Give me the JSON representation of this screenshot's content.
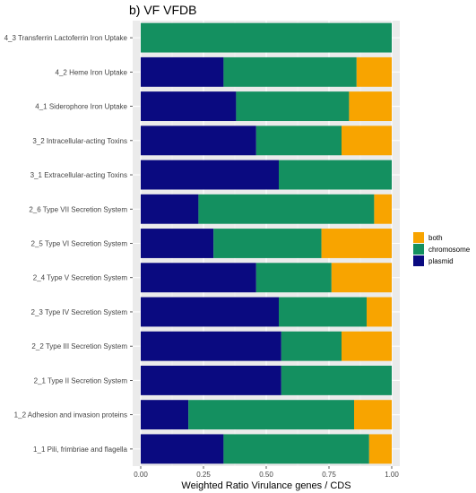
{
  "chart_data": {
    "type": "bar",
    "orientation": "horizontal",
    "stacked": true,
    "title": "b) VF VFDB",
    "xlabel": "Weighted Ratio Virulance genes / CDS",
    "ylabel": "",
    "xlim": [
      0,
      1
    ],
    "xticks": [
      "0.00",
      "0.25",
      "0.50",
      "0.75",
      "1.00"
    ],
    "grid": true,
    "legend_position": "right",
    "categories": [
      "4_3 Transferrin Lactoferrin Iron Uptake",
      "4_2 Heme Iron Uptake",
      "4_1 Siderophore Iron Uptake",
      "3_2 Intracellular-acting Toxins",
      "3_1 Extracellular-acting Toxins",
      "2_6 Type VII Secretion System",
      "2_5 Type VI Secretion System",
      "2_4 Type V Secretion System",
      "2_3 Type IV Secretion System",
      "2_2 Type III Secretion System",
      "2_1 Type II Secretion System",
      "1_2 Adhesion and invasion proteins",
      "1_1 Pili, frimbriae and flagella"
    ],
    "series": [
      {
        "name": "plasmid",
        "color": "#0a0a80",
        "values": [
          0.0,
          0.33,
          0.38,
          0.46,
          0.55,
          0.23,
          0.29,
          0.46,
          0.55,
          0.56,
          0.56,
          0.19,
          0.33
        ]
      },
      {
        "name": "chromosome",
        "color": "#149060",
        "values": [
          1.0,
          0.53,
          0.45,
          0.34,
          0.45,
          0.7,
          0.43,
          0.3,
          0.35,
          0.24,
          0.44,
          0.66,
          0.58
        ]
      },
      {
        "name": "both",
        "color": "#f8a400",
        "values": [
          0.0,
          0.14,
          0.17,
          0.2,
          0.0,
          0.07,
          0.28,
          0.24,
          0.1,
          0.2,
          0.0,
          0.15,
          0.09
        ]
      }
    ],
    "legend_order": [
      "both",
      "chromosome",
      "plasmid"
    ]
  }
}
